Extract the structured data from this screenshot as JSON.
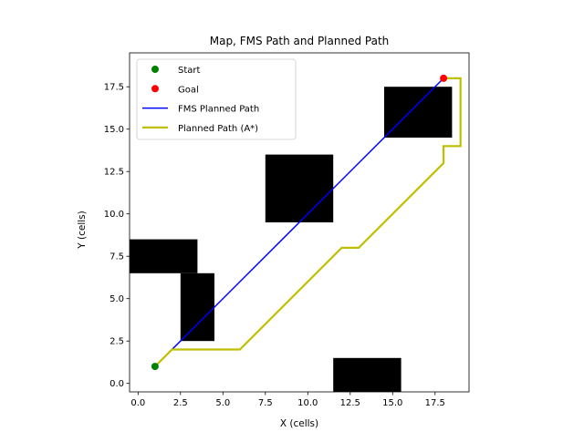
{
  "chart_data": {
    "type": "scatter",
    "title": "Map, FMS Path and Planned Path",
    "xlabel": "X (cells)",
    "ylabel": "Y (cells)",
    "xlim": [
      -0.5,
      19.5
    ],
    "ylim": [
      -0.5,
      19.5
    ],
    "xticks": [
      0.0,
      2.5,
      5.0,
      7.5,
      10.0,
      12.5,
      15.0,
      17.5
    ],
    "xtick_labels": [
      "0.0",
      "2.5",
      "5.0",
      "7.5",
      "10.0",
      "12.5",
      "15.0",
      "17.5"
    ],
    "yticks": [
      0.0,
      2.5,
      5.0,
      7.5,
      10.0,
      12.5,
      15.0,
      17.5
    ],
    "ytick_labels": [
      "0.0",
      "2.5",
      "5.0",
      "7.5",
      "10.0",
      "12.5",
      "15.0",
      "17.5"
    ],
    "grid": false,
    "legend_position": "top-left",
    "obstacles": [
      {
        "x0": -0.5,
        "x1": 3.5,
        "y0": 6.5,
        "y1": 8.5
      },
      {
        "x0": 2.5,
        "x1": 4.5,
        "y0": 2.5,
        "y1": 6.5
      },
      {
        "x0": 7.5,
        "x1": 11.5,
        "y0": 9.5,
        "y1": 13.5
      },
      {
        "x0": 14.5,
        "x1": 18.5,
        "y0": 14.5,
        "y1": 17.5
      },
      {
        "x0": 11.5,
        "x1": 15.5,
        "y0": -0.5,
        "y1": 1.5
      }
    ],
    "series": [
      {
        "name": "Start",
        "kind": "point",
        "color": "#008000",
        "x": [
          1
        ],
        "y": [
          1
        ]
      },
      {
        "name": "Goal",
        "kind": "point",
        "color": "#ff0000",
        "x": [
          18
        ],
        "y": [
          18
        ]
      },
      {
        "name": "FMS Planned Path",
        "kind": "line",
        "color": "#0000ff",
        "x": [
          1,
          18
        ],
        "y": [
          1,
          18
        ]
      },
      {
        "name": "Planned Path (A*)",
        "kind": "line",
        "color": "#bfbf00",
        "x": [
          1,
          2,
          6,
          12,
          13,
          18,
          18,
          19,
          19,
          18
        ],
        "y": [
          1,
          2,
          2,
          8,
          8,
          13,
          14,
          14,
          18,
          18
        ]
      }
    ],
    "legend_order": [
      "Start",
      "Goal",
      "FMS Planned Path",
      "Planned Path (A*)"
    ]
  }
}
